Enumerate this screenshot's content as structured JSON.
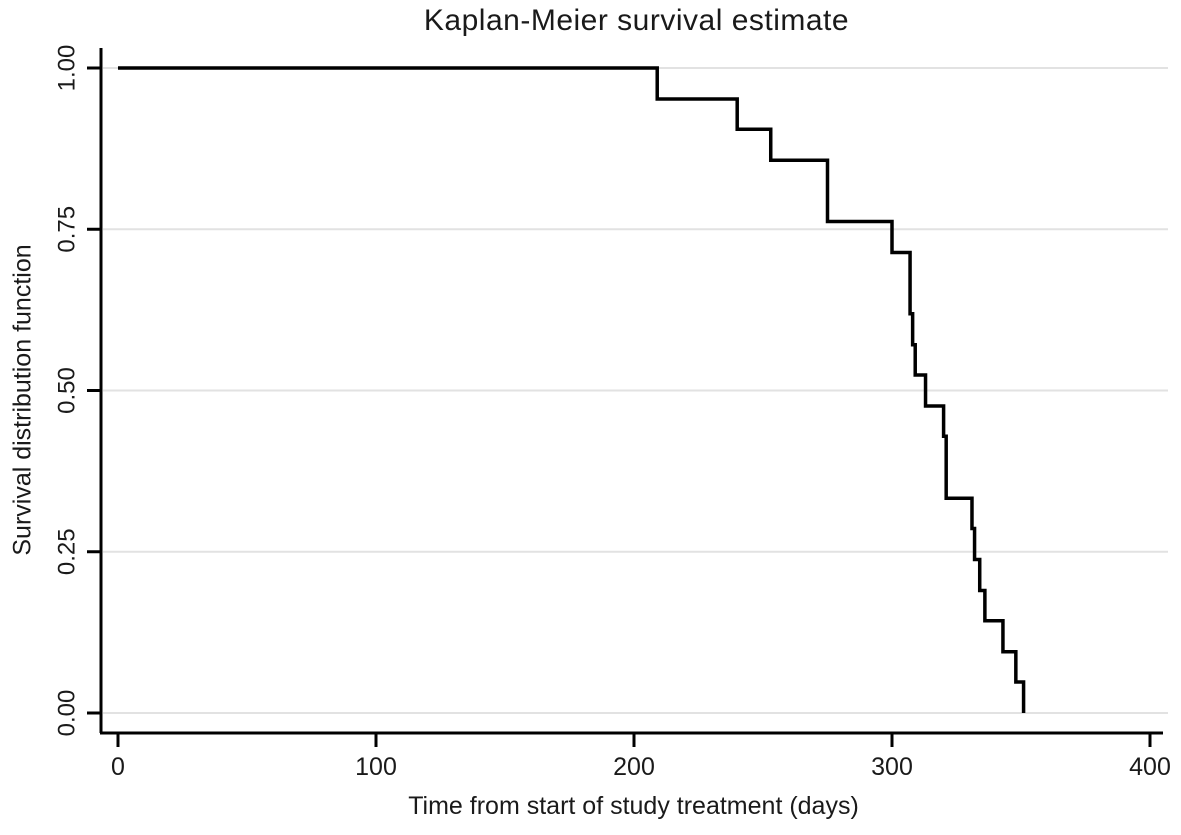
{
  "figure": {
    "title": "Kaplan-Meier survival estimate"
  },
  "chart_data": {
    "type": "line",
    "subtype": "kaplan-meier-step",
    "title": "Kaplan-Meier survival estimate",
    "xlabel": "Time from start of study treatment (days)",
    "ylabel": "Survival distribution function",
    "xlim": [
      0,
      408
    ],
    "ylim": [
      0.0,
      1.0
    ],
    "x_ticks": [
      0,
      100,
      200,
      300,
      400
    ],
    "y_ticks": [
      {
        "value": 0.0,
        "label": "0.00"
      },
      {
        "value": 0.25,
        "label": "0.25"
      },
      {
        "value": 0.5,
        "label": "0.50"
      },
      {
        "value": 0.75,
        "label": "0.75"
      },
      {
        "value": 1.0,
        "label": "1.00"
      }
    ],
    "grid": "horizontal",
    "legend": "none",
    "series": [
      {
        "name": "Survival distribution function",
        "color": "#000000",
        "step_points": [
          {
            "day": 0,
            "survival": 1.0
          },
          {
            "day": 209,
            "survival": 0.952
          },
          {
            "day": 240,
            "survival": 0.905
          },
          {
            "day": 253,
            "survival": 0.857
          },
          {
            "day": 275,
            "survival": 0.762
          },
          {
            "day": 300,
            "survival": 0.714
          },
          {
            "day": 307,
            "survival": 0.619
          },
          {
            "day": 308,
            "survival": 0.571
          },
          {
            "day": 309,
            "survival": 0.524
          },
          {
            "day": 313,
            "survival": 0.476
          },
          {
            "day": 320,
            "survival": 0.429
          },
          {
            "day": 321,
            "survival": 0.333
          },
          {
            "day": 331,
            "survival": 0.286
          },
          {
            "day": 332,
            "survival": 0.238
          },
          {
            "day": 334,
            "survival": 0.19
          },
          {
            "day": 336,
            "survival": 0.143
          },
          {
            "day": 343,
            "survival": 0.095
          },
          {
            "day": 348,
            "survival": 0.048
          },
          {
            "day": 351,
            "survival": 0.0
          }
        ]
      }
    ],
    "colors": {
      "curve": "#000000",
      "axis": "#000000",
      "gridline": "#e2e2e2",
      "text": "#1a1a1a",
      "background": "#ffffff"
    }
  }
}
